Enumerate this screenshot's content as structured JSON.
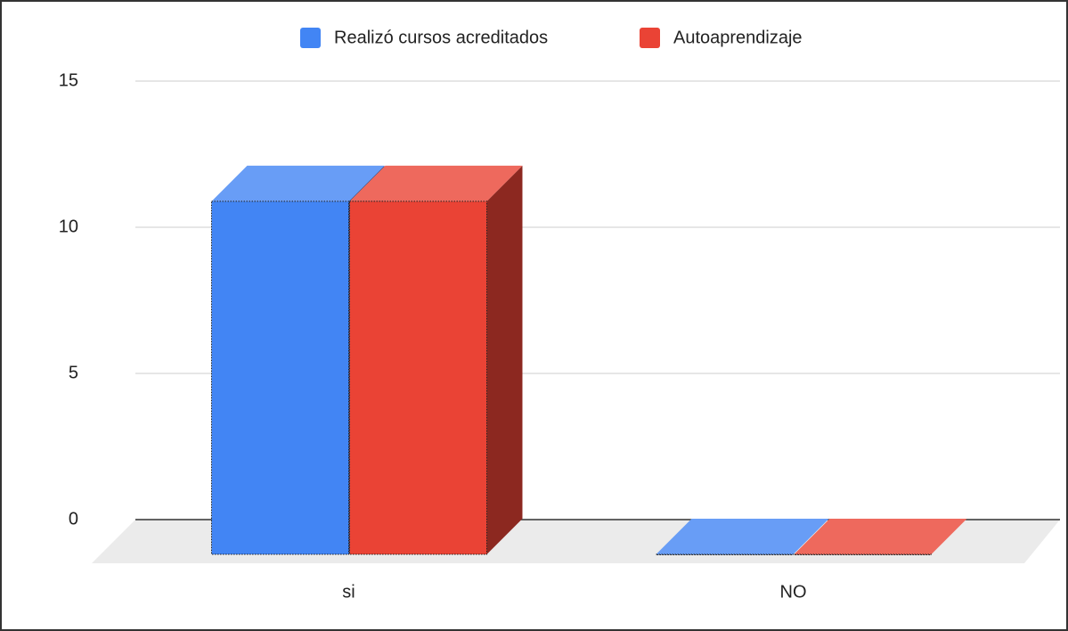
{
  "chart_data": {
    "type": "bar3d",
    "categories": [
      "si",
      "NO"
    ],
    "series": [
      {
        "name": "Realizó cursos acreditados",
        "color": "#4285f4",
        "values": [
          13,
          0
        ]
      },
      {
        "name": "Autoaprendizaje",
        "color": "#ea4335",
        "values": [
          13,
          0
        ]
      }
    ],
    "ylim": [
      0,
      15
    ],
    "yticks": [
      0,
      5,
      10,
      15
    ],
    "grid": true,
    "legend": "top"
  }
}
